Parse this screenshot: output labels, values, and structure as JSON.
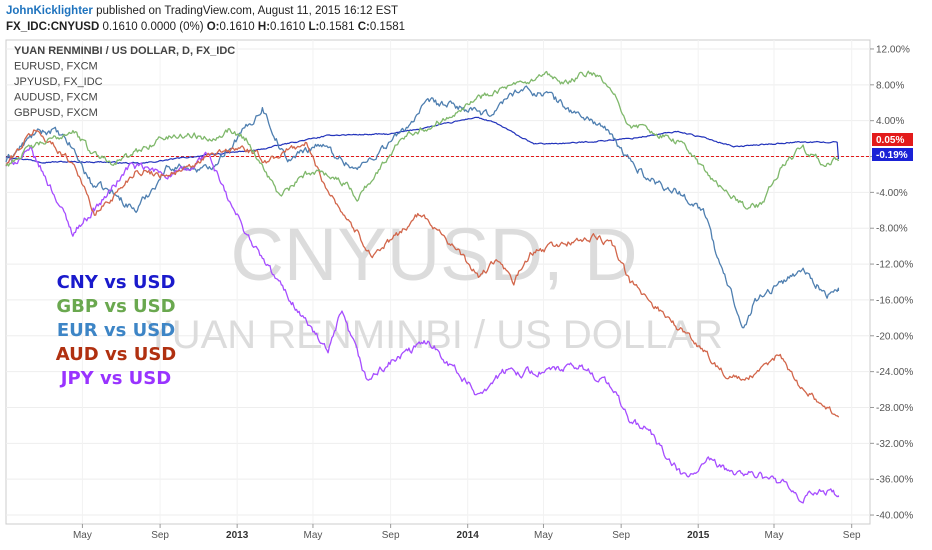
{
  "header": {
    "author": "JohnKicklighter",
    "published_text": "published on TradingView.com, August 11, 2015 16:12 EST",
    "symbol": "FX_IDC:CNYUSD",
    "quote": "0.1610 0.0000 (0%)",
    "o_label": "O:",
    "o_value": "0.1610",
    "h_label": "H:",
    "h_value": "0.1610",
    "l_label": "L:",
    "l_value": "0.1581",
    "c_label": "C:",
    "c_value": "0.1581"
  },
  "watermark": {
    "line1": "CNYUSD, D",
    "line2": "YUAN RENMINBI / US DOLLAR"
  },
  "badges": {
    "red": "0.05%",
    "blue": "-0.19%"
  },
  "chart_data": {
    "type": "line",
    "title": "YUAN RENMINBI / US DOLLAR, D, FX_IDC",
    "legend": [
      "YUAN RENMINBI / US DOLLAR, D, FX_IDC",
      "EURUSD, FXCM",
      "JPYUSD, FX_IDC",
      "AUDUSD, FXCM",
      "GBPUSD, FXCM"
    ],
    "legend_position": "top-left",
    "y_unit": "% change",
    "ylim": [
      -41,
      13
    ],
    "y_ticks": [
      12,
      8,
      4,
      0,
      -4,
      -8,
      -12,
      -16,
      -20,
      -24,
      -28,
      -32,
      -36,
      -40
    ],
    "y_tick_labels": [
      "12.00%",
      "8.00%",
      "4.00%",
      "",
      "-4.00%",
      "-8.00%",
      "-12.00%",
      "-16.00%",
      "-20.00%",
      "-24.00%",
      "-28.00%",
      "-32.00%",
      "-36.00%",
      "-40.00%"
    ],
    "xlim": [
      "2012-01-01",
      "2015-09-30"
    ],
    "x_ticks": [
      {
        "date": "2012-05-01",
        "label": "May",
        "bold": false
      },
      {
        "date": "2012-09-01",
        "label": "Sep",
        "bold": false
      },
      {
        "date": "2013-01-01",
        "label": "2013",
        "bold": true
      },
      {
        "date": "2013-05-01",
        "label": "May",
        "bold": false
      },
      {
        "date": "2013-09-01",
        "label": "Sep",
        "bold": false
      },
      {
        "date": "2014-01-01",
        "label": "2014",
        "bold": true
      },
      {
        "date": "2014-05-01",
        "label": "May",
        "bold": false
      },
      {
        "date": "2014-09-01",
        "label": "Sep",
        "bold": false
      },
      {
        "date": "2015-01-01",
        "label": "2015",
        "bold": true
      },
      {
        "date": "2015-05-01",
        "label": "May",
        "bold": false
      },
      {
        "date": "2015-09-01",
        "label": "Sep",
        "bold": false
      }
    ],
    "annotations": [
      {
        "text": "CNY vs USD",
        "color": "#1a1acc"
      },
      {
        "text": "GBP vs USD",
        "color": "#6aa84f"
      },
      {
        "text": "EUR vs USD",
        "color": "#3d85c6"
      },
      {
        "text": "AUD vs USD",
        "color": "#b03010"
      },
      {
        "text": "JPY vs USD",
        "color": "#9933ff"
      }
    ],
    "series": [
      {
        "name": "YUAN RENMINBI / US DOLLAR, D, FX_IDC",
        "color": "#2233bb",
        "width": 1.2,
        "noise": 0.12,
        "points": [
          [
            "2012-01-01",
            0
          ],
          [
            "2012-03-01",
            -0.6
          ],
          [
            "2012-06-01",
            -0.6
          ],
          [
            "2012-08-01",
            -0.8
          ],
          [
            "2012-10-01",
            -0.2
          ],
          [
            "2012-12-01",
            0.3
          ],
          [
            "2013-02-01",
            0.7
          ],
          [
            "2013-04-01",
            1.6
          ],
          [
            "2013-06-01",
            2.4
          ],
          [
            "2013-09-01",
            2.5
          ],
          [
            "2013-12-01",
            3.7
          ],
          [
            "2014-01-15",
            4.4
          ],
          [
            "2014-02-15",
            3.7
          ],
          [
            "2014-04-15",
            1.4
          ],
          [
            "2014-06-15",
            1.5
          ],
          [
            "2014-09-15",
            2.0
          ],
          [
            "2014-12-01",
            2.8
          ],
          [
            "2015-01-15",
            2.0
          ],
          [
            "2015-03-01",
            1.1
          ],
          [
            "2015-06-01",
            1.6
          ],
          [
            "2015-08-10",
            1.6
          ],
          [
            "2015-08-11",
            -0.19
          ]
        ]
      },
      {
        "name": "EURUSD, FXCM",
        "color": "#4f7fb0",
        "width": 1.3,
        "noise": 0.7,
        "points": [
          [
            "2012-01-01",
            -0.5
          ],
          [
            "2012-02-15",
            2.5
          ],
          [
            "2012-03-15",
            3.0
          ],
          [
            "2012-04-15",
            1.0
          ],
          [
            "2012-05-15",
            -3.0
          ],
          [
            "2012-06-15",
            -4.0
          ],
          [
            "2012-07-25",
            -6.0
          ],
          [
            "2012-09-15",
            -1.0
          ],
          [
            "2012-11-15",
            -1.5
          ],
          [
            "2013-01-20",
            3.5
          ],
          [
            "2013-02-10",
            5.5
          ],
          [
            "2013-03-20",
            -0.5
          ],
          [
            "2013-05-10",
            1.5
          ],
          [
            "2013-07-10",
            -1.5
          ],
          [
            "2013-09-15",
            2.5
          ],
          [
            "2013-11-01",
            6.0
          ],
          [
            "2013-12-20",
            5.5
          ],
          [
            "2014-02-01",
            4.5
          ],
          [
            "2014-03-20",
            7.5
          ],
          [
            "2014-05-08",
            7.0
          ],
          [
            "2014-06-15",
            5.0
          ],
          [
            "2014-08-01",
            3.5
          ],
          [
            "2014-09-15",
            -0.5
          ],
          [
            "2014-10-15",
            -2.5
          ],
          [
            "2014-12-01",
            -4.0
          ],
          [
            "2015-01-10",
            -6.0
          ],
          [
            "2015-02-01",
            -11.5
          ],
          [
            "2015-03-15",
            -19.0
          ],
          [
            "2015-04-01",
            -16.0
          ],
          [
            "2015-05-15",
            -14.0
          ],
          [
            "2015-06-15",
            -12.5
          ],
          [
            "2015-07-25",
            -15.5
          ],
          [
            "2015-08-11",
            -15.0
          ]
        ]
      },
      {
        "name": "JPYUSD, FX_IDC",
        "color": "#a64dff",
        "width": 1.3,
        "noise": 0.7,
        "points": [
          [
            "2012-01-01",
            -1.0
          ],
          [
            "2012-02-10",
            0.5
          ],
          [
            "2012-03-20",
            -4.5
          ],
          [
            "2012-04-15",
            -8.5
          ],
          [
            "2012-06-01",
            -5.0
          ],
          [
            "2012-07-15",
            -1.0
          ],
          [
            "2012-09-15",
            -2.0
          ],
          [
            "2012-10-20",
            -1.5
          ],
          [
            "2012-11-15",
            0.5
          ],
          [
            "2012-12-15",
            -4.5
          ],
          [
            "2013-01-15",
            -8.5
          ],
          [
            "2013-02-15",
            -12.0
          ],
          [
            "2013-04-01",
            -16.5
          ],
          [
            "2013-05-01",
            -19.5
          ],
          [
            "2013-05-25",
            -22.0
          ],
          [
            "2013-06-15",
            -17.5
          ],
          [
            "2013-07-10",
            -22.0
          ],
          [
            "2013-07-25",
            -25.0
          ],
          [
            "2013-09-01",
            -23.0
          ],
          [
            "2013-11-01",
            -20.5
          ],
          [
            "2013-12-15",
            -24.0
          ],
          [
            "2014-01-15",
            -26.5
          ],
          [
            "2014-03-01",
            -24.0
          ],
          [
            "2014-05-01",
            -24.0
          ],
          [
            "2014-07-01",
            -23.5
          ],
          [
            "2014-08-15",
            -25.5
          ],
          [
            "2014-09-15",
            -29.5
          ],
          [
            "2014-10-15",
            -30.5
          ],
          [
            "2014-11-15",
            -34.0
          ],
          [
            "2014-12-15",
            -36.0
          ],
          [
            "2015-01-15",
            -34.0
          ],
          [
            "2015-02-15",
            -35.0
          ],
          [
            "2015-04-01",
            -35.5
          ],
          [
            "2015-05-15",
            -36.5
          ],
          [
            "2015-06-10",
            -38.5
          ],
          [
            "2015-07-15",
            -37.0
          ],
          [
            "2015-08-11",
            -38.0
          ]
        ]
      },
      {
        "name": "AUDUSD, FXCM",
        "color": "#d2664b",
        "width": 1.3,
        "noise": 0.6,
        "points": [
          [
            "2012-01-01",
            -1.0
          ],
          [
            "2012-02-15",
            3.0
          ],
          [
            "2012-03-20",
            1.0
          ],
          [
            "2012-04-20",
            -1.0
          ],
          [
            "2012-05-20",
            -6.5
          ],
          [
            "2012-06-25",
            -4.0
          ],
          [
            "2012-07-25",
            -1.5
          ],
          [
            "2012-09-01",
            -2.0
          ],
          [
            "2012-10-15",
            -1.5
          ],
          [
            "2012-11-15",
            0.0
          ],
          [
            "2013-01-10",
            1.0
          ],
          [
            "2013-02-15",
            -0.5
          ],
          [
            "2013-04-01",
            1.0
          ],
          [
            "2013-04-20",
            1.5
          ],
          [
            "2013-05-15",
            -2.5
          ],
          [
            "2013-06-15",
            -6.0
          ],
          [
            "2013-07-15",
            -9.0
          ],
          [
            "2013-08-01",
            -11.0
          ],
          [
            "2013-09-01",
            -9.5
          ],
          [
            "2013-10-15",
            -6.5
          ],
          [
            "2013-11-15",
            -8.0
          ],
          [
            "2013-12-15",
            -10.5
          ],
          [
            "2014-01-20",
            -13.5
          ],
          [
            "2014-02-15",
            -11.5
          ],
          [
            "2014-03-15",
            -14.0
          ],
          [
            "2014-04-10",
            -11.0
          ],
          [
            "2014-05-15",
            -10.0
          ],
          [
            "2014-06-15",
            -9.5
          ],
          [
            "2014-07-25",
            -9.0
          ],
          [
            "2014-08-20",
            -10.0
          ],
          [
            "2014-09-15",
            -14.0
          ],
          [
            "2014-10-15",
            -16.0
          ],
          [
            "2014-11-15",
            -18.0
          ],
          [
            "2014-12-15",
            -20.0
          ],
          [
            "2015-01-15",
            -22.0
          ],
          [
            "2015-02-15",
            -24.5
          ],
          [
            "2015-03-15",
            -25.0
          ],
          [
            "2015-04-10",
            -24.0
          ],
          [
            "2015-05-10",
            -22.0
          ],
          [
            "2015-06-15",
            -26.0
          ],
          [
            "2015-07-15",
            -27.5
          ],
          [
            "2015-08-11",
            -29.0
          ]
        ]
      },
      {
        "name": "GBPUSD, FXCM",
        "color": "#7fb86b",
        "width": 1.3,
        "noise": 0.6,
        "points": [
          [
            "2012-01-01",
            -1.0
          ],
          [
            "2012-02-10",
            1.0
          ],
          [
            "2012-03-20",
            2.0
          ],
          [
            "2012-04-15",
            3.0
          ],
          [
            "2012-05-15",
            0.5
          ],
          [
            "2012-06-15",
            -0.5
          ],
          [
            "2012-07-15",
            0.0
          ],
          [
            "2012-09-01",
            2.0
          ],
          [
            "2012-10-20",
            2.5
          ],
          [
            "2012-11-15",
            2.0
          ],
          [
            "2012-12-20",
            3.0
          ],
          [
            "2013-01-15",
            2.0
          ],
          [
            "2013-02-10",
            -1.0
          ],
          [
            "2013-03-10",
            -4.5
          ],
          [
            "2013-04-20",
            -2.0
          ],
          [
            "2013-05-15",
            -1.5
          ],
          [
            "2013-06-20",
            -3.0
          ],
          [
            "2013-07-10",
            -4.5
          ],
          [
            "2013-08-15",
            -1.5
          ],
          [
            "2013-09-20",
            2.5
          ],
          [
            "2013-11-10",
            3.5
          ],
          [
            "2013-12-20",
            5.5
          ],
          [
            "2014-02-15",
            7.5
          ],
          [
            "2014-04-01",
            8.0
          ],
          [
            "2014-05-08",
            9.0
          ],
          [
            "2014-06-01",
            8.0
          ],
          [
            "2014-07-15",
            9.5
          ],
          [
            "2014-08-15",
            7.5
          ],
          [
            "2014-09-15",
            3.5
          ],
          [
            "2014-10-15",
            3.0
          ],
          [
            "2014-11-15",
            2.0
          ],
          [
            "2014-12-15",
            1.0
          ],
          [
            "2015-01-15",
            -2.0
          ],
          [
            "2015-02-15",
            -4.0
          ],
          [
            "2015-03-15",
            -5.5
          ],
          [
            "2015-04-10",
            -5.5
          ],
          [
            "2015-05-15",
            -1.0
          ],
          [
            "2015-06-15",
            1.0
          ],
          [
            "2015-07-15",
            -0.5
          ],
          [
            "2015-08-11",
            -0.5
          ]
        ]
      }
    ]
  }
}
